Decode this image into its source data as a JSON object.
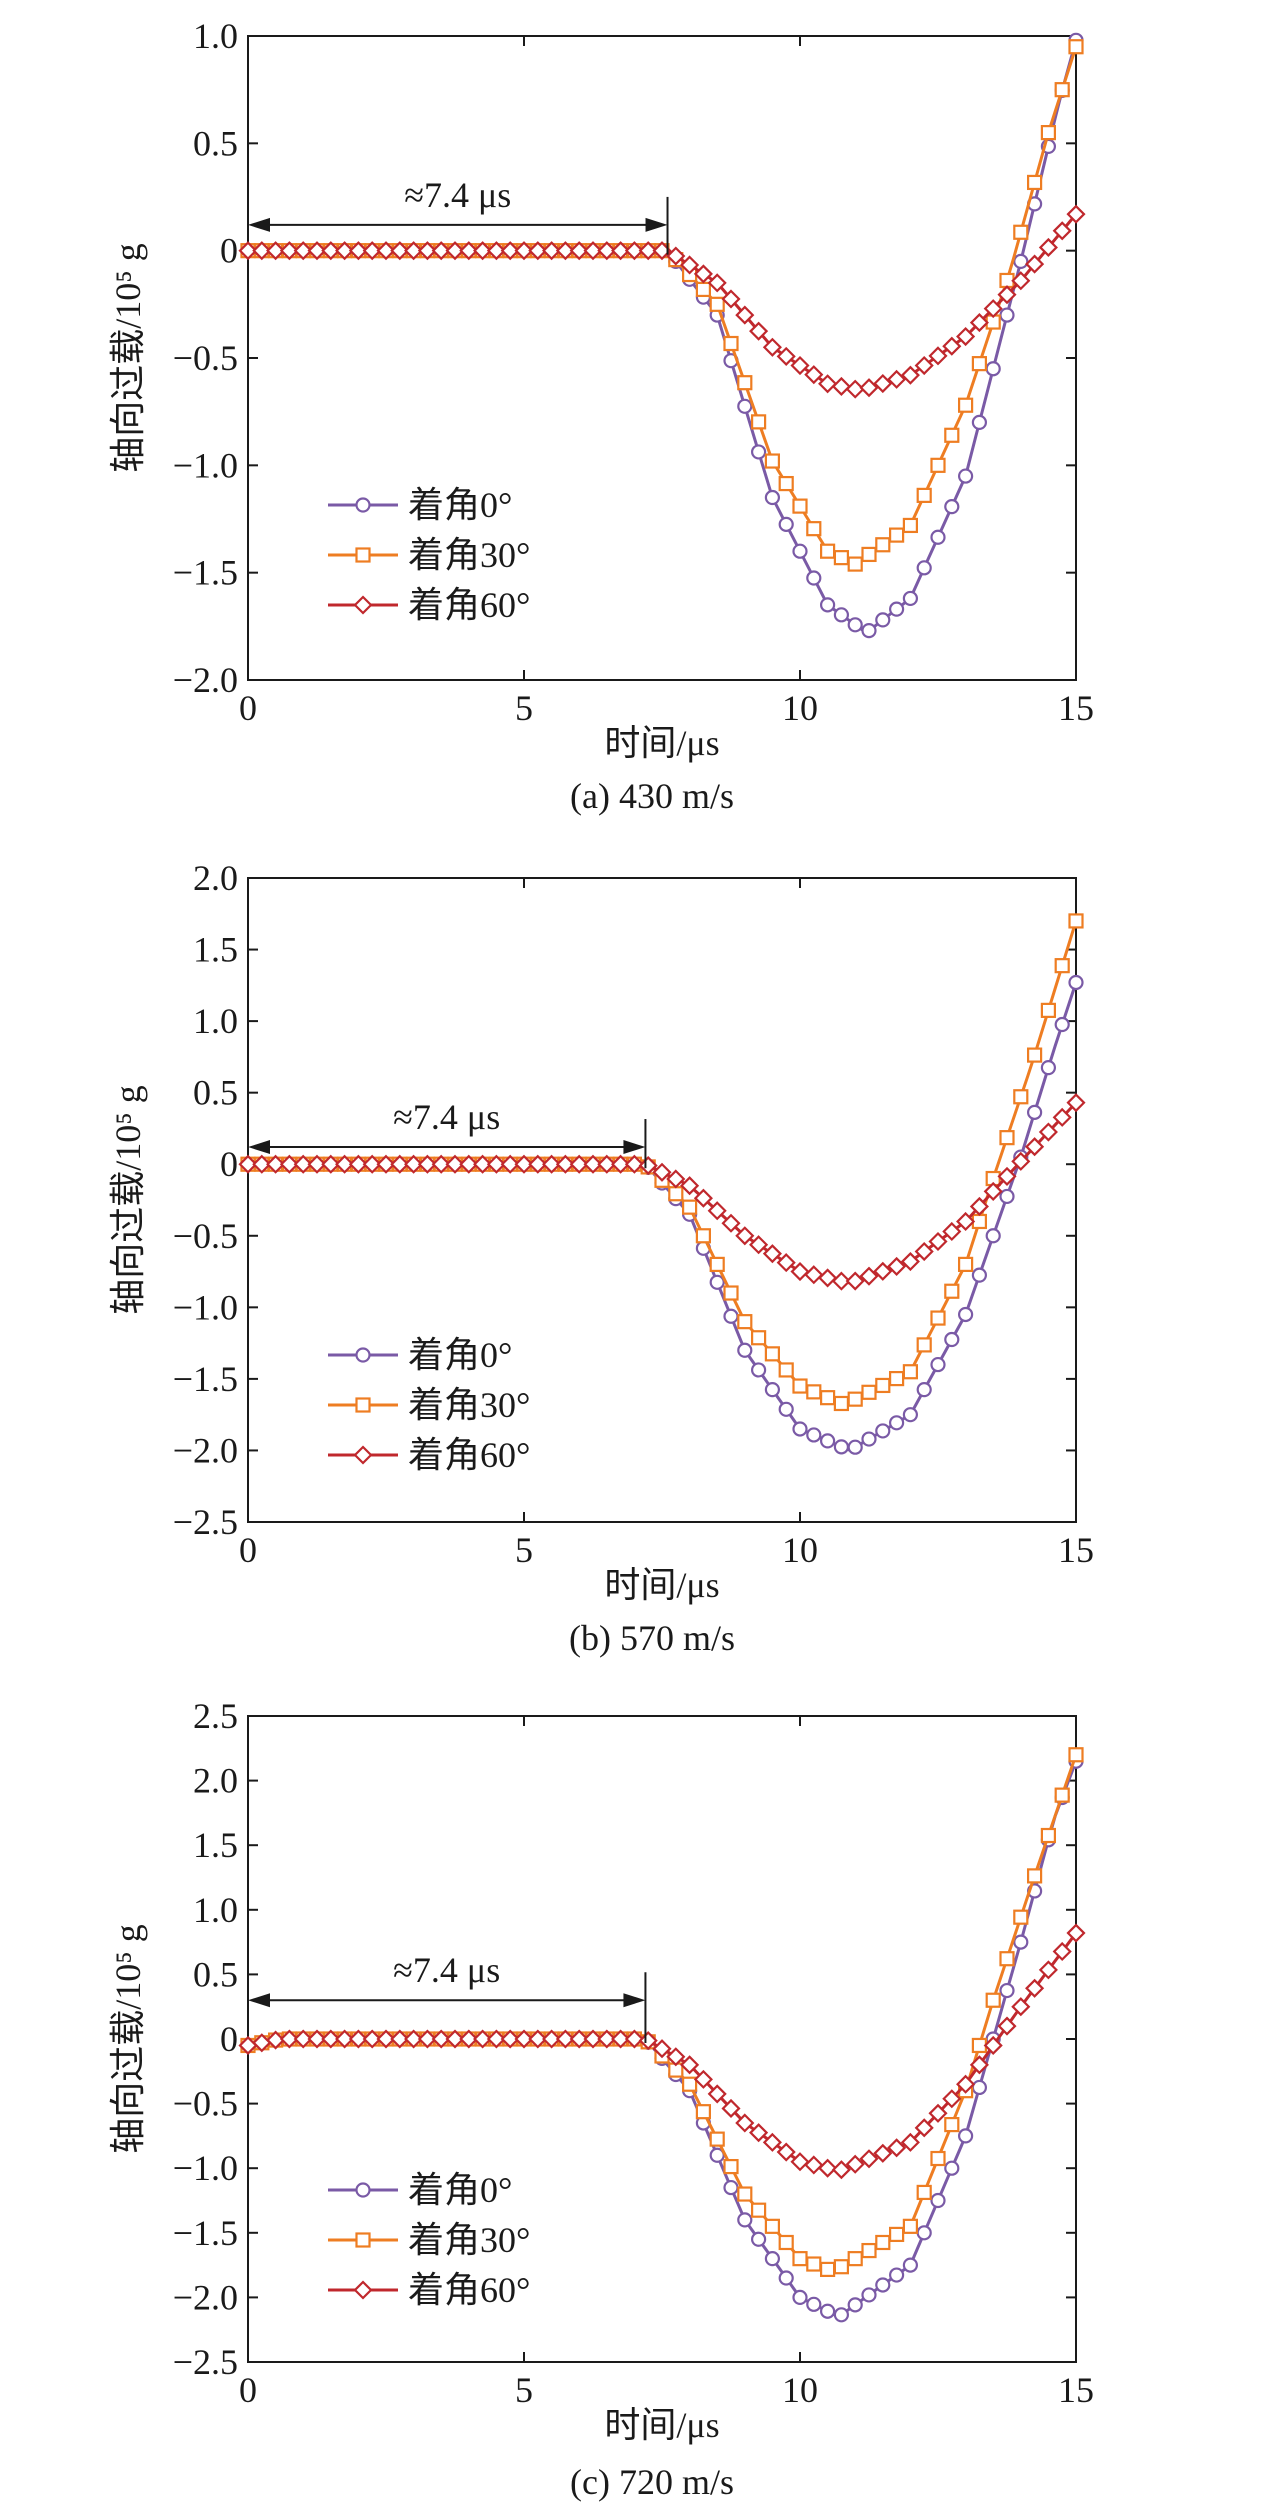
{
  "colors": {
    "series_0deg": "#7a5aa6",
    "series_30deg": "#ee7d22",
    "series_60deg": "#c0282d",
    "axis": "#1a1a1a"
  },
  "chart_data": [
    {
      "type": "line",
      "title": "(a) 430 m/s",
      "xlabel": "时间/μs",
      "ylabel": "轴向过载/10⁵ g",
      "xlim": [
        0,
        15
      ],
      "ylim": [
        -2.0,
        1.0
      ],
      "xticks": [
        0,
        5,
        10,
        15
      ],
      "yticks": [
        -2.0,
        -1.5,
        -1.0,
        -0.5,
        0,
        0.5,
        1.0
      ],
      "ytick_labels": [
        "−2.0",
        "−1.5",
        "−1.0",
        "−0.5",
        "0",
        "0.5",
        "1.0"
      ],
      "grid": false,
      "legend_position": "lower-left",
      "annotation": {
        "text": "≈7.4 μs",
        "x_start": 0,
        "x_end": 7.6,
        "y": 0.12
      },
      "series": [
        {
          "name": "着角0°",
          "marker": "circle",
          "x": [
            0,
            7.6,
            8.5,
            9.5,
            10.5,
            11.2,
            12.0,
            13.0,
            14.0,
            14.7,
            15.0
          ],
          "y": [
            0,
            0,
            -0.3,
            -1.15,
            -1.65,
            -1.78,
            -1.62,
            -1.05,
            -0.05,
            0.7,
            0.98
          ]
        },
        {
          "name": "着角30°",
          "marker": "square",
          "x": [
            0,
            7.6,
            8.5,
            9.5,
            10.5,
            11.0,
            12.0,
            13.0,
            13.8,
            14.5,
            15.0
          ],
          "y": [
            0,
            0,
            -0.25,
            -0.98,
            -1.4,
            -1.46,
            -1.28,
            -0.72,
            -0.1,
            0.55,
            0.95
          ]
        },
        {
          "name": "着角60°",
          "marker": "diamond",
          "x": [
            0,
            7.6,
            8.5,
            9.5,
            10.5,
            11.1,
            12.0,
            13.0,
            14.0,
            15.0
          ],
          "y": [
            0,
            0,
            -0.15,
            -0.45,
            -0.62,
            -0.65,
            -0.58,
            -0.4,
            -0.14,
            0.17
          ]
        }
      ]
    },
    {
      "type": "line",
      "title": "(b) 570 m/s",
      "xlabel": "时间/μs",
      "ylabel": "轴向过载/10⁵ g",
      "xlim": [
        0,
        15
      ],
      "ylim": [
        -2.5,
        2.0
      ],
      "xticks": [
        0,
        5,
        10,
        15
      ],
      "yticks": [
        -2.5,
        -2.0,
        -1.5,
        -1.0,
        -0.5,
        0,
        0.5,
        1.0,
        1.5,
        2.0
      ],
      "ytick_labels": [
        "−2.5",
        "−2.0",
        "−1.5",
        "−1.0",
        "−0.5",
        "0",
        "0.5",
        "1.0",
        "1.5",
        "2.0"
      ],
      "grid": false,
      "legend_position": "lower-left",
      "annotation": {
        "text": "≈7.4 μs",
        "x_start": 0,
        "x_end": 7.2,
        "y": 0.12
      },
      "series": [
        {
          "name": "着角0°",
          "marker": "circle",
          "x": [
            0,
            7.2,
            8.0,
            9.0,
            10.0,
            10.9,
            12.0,
            13.0,
            14.0,
            14.6,
            15.0
          ],
          "y": [
            0,
            0,
            -0.35,
            -1.3,
            -1.85,
            -2.0,
            -1.75,
            -1.05,
            0.05,
            0.8,
            1.27
          ]
        },
        {
          "name": "着角30°",
          "marker": "square",
          "x": [
            0,
            7.2,
            8.0,
            9.0,
            10.0,
            10.8,
            12.0,
            13.0,
            13.5,
            14.2,
            15.0
          ],
          "y": [
            0,
            0,
            -0.3,
            -1.1,
            -1.55,
            -1.68,
            -1.45,
            -0.7,
            -0.1,
            0.7,
            1.7
          ]
        },
        {
          "name": "着角60°",
          "marker": "diamond",
          "x": [
            0,
            7.2,
            8.0,
            9.0,
            10.0,
            10.9,
            12.0,
            13.0,
            14.0,
            15.0
          ],
          "y": [
            0,
            0,
            -0.15,
            -0.5,
            -0.75,
            -0.83,
            -0.68,
            -0.4,
            0.02,
            0.43
          ]
        }
      ]
    },
    {
      "type": "line",
      "title": "(c) 720 m/s",
      "xlabel": "时间/μs",
      "ylabel": "轴向过载/10⁵ g",
      "xlim": [
        0,
        15
      ],
      "ylim": [
        -2.5,
        2.5
      ],
      "xticks": [
        0,
        5,
        10,
        15
      ],
      "yticks": [
        -2.5,
        -2.0,
        -1.5,
        -1.0,
        -0.5,
        0,
        0.5,
        1.0,
        1.5,
        2.0,
        2.5
      ],
      "ytick_labels": [
        "−2.5",
        "−2.0",
        "−1.5",
        "−1.0",
        "−0.5",
        "0",
        "0.5",
        "1.0",
        "1.5",
        "2.0",
        "2.5"
      ],
      "grid": false,
      "legend_position": "lower-left",
      "annotation": {
        "text": "≈7.4 μs",
        "x_start": 0,
        "x_end": 7.2,
        "y": 0.3
      },
      "series": [
        {
          "name": "着角0°",
          "marker": "circle",
          "x": [
            0,
            0.6,
            7.2,
            8.0,
            9.0,
            10.0,
            10.7,
            12.0,
            13.0,
            14.0,
            14.6,
            15.0
          ],
          "y": [
            -0.05,
            0,
            0,
            -0.4,
            -1.4,
            -2.0,
            -2.15,
            -1.75,
            -0.75,
            0.75,
            1.7,
            2.15
          ]
        },
        {
          "name": "着角30°",
          "marker": "square",
          "x": [
            0,
            0.6,
            7.2,
            8.0,
            9.0,
            10.0,
            10.6,
            12.0,
            13.0,
            13.5,
            14.2,
            15.0
          ],
          "y": [
            -0.05,
            0,
            0,
            -0.35,
            -1.2,
            -1.7,
            -1.8,
            -1.45,
            -0.4,
            0.3,
            1.2,
            2.2
          ]
        },
        {
          "name": "着角60°",
          "marker": "diamond",
          "x": [
            0,
            0.6,
            7.2,
            8.0,
            9.0,
            10.0,
            10.7,
            12.0,
            13.0,
            14.0,
            15.0
          ],
          "y": [
            -0.05,
            0,
            0,
            -0.2,
            -0.65,
            -0.95,
            -1.02,
            -0.8,
            -0.35,
            0.25,
            0.82
          ]
        }
      ]
    }
  ]
}
